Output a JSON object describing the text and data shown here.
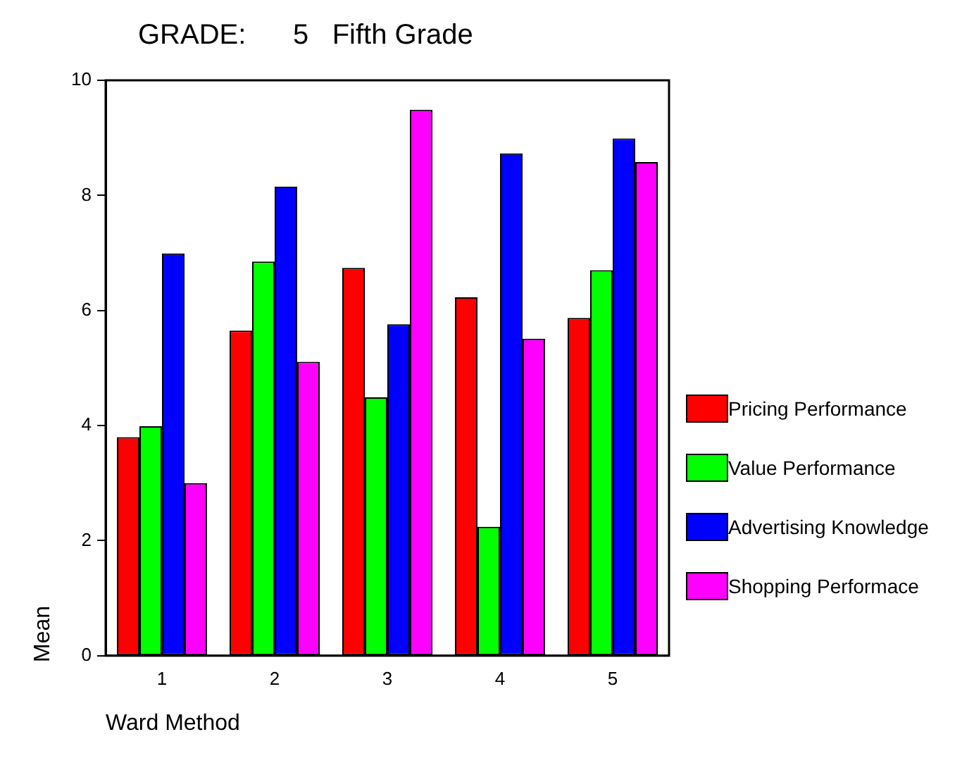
{
  "chart_data": {
    "type": "bar",
    "title": "GRADE:      5   Fifth Grade",
    "xlabel": "Ward Method",
    "ylabel": "Mean",
    "categories": [
      "1",
      "2",
      "3",
      "4",
      "5"
    ],
    "series": [
      {
        "name": "Pricing Performance",
        "color": "#ff0000",
        "values": [
          3.8,
          5.65,
          6.74,
          6.23,
          5.87
        ]
      },
      {
        "name": "Value Performance",
        "color": "#00ff00",
        "values": [
          3.99,
          6.85,
          4.49,
          2.24,
          6.7
        ]
      },
      {
        "name": "Advertising Knowledge",
        "color": "#0000ff",
        "values": [
          6.99,
          8.15,
          5.76,
          8.73,
          8.99
        ]
      },
      {
        "name": "Shopping Performace",
        "color": "#ff00ff",
        "values": [
          3.0,
          5.11,
          9.49,
          5.51,
          8.58
        ]
      }
    ],
    "ylim": [
      0,
      10
    ],
    "yticks": [
      0,
      2,
      4,
      6,
      8,
      10
    ],
    "legend": "right"
  }
}
